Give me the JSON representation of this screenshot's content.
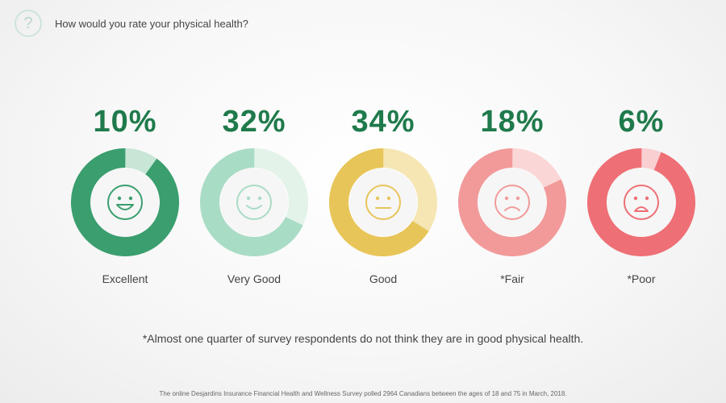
{
  "header": {
    "icon": "question-icon",
    "icon_glyph": "?",
    "question": "How would you rate your physical health?"
  },
  "chart_data": {
    "type": "donut",
    "title": "How would you rate your physical health?",
    "categories": [
      "Excellent",
      "Very Good",
      "Good",
      "*Fair",
      "*Poor"
    ],
    "values": [
      10,
      32,
      34,
      18,
      6
    ],
    "value_labels": [
      "10%",
      "32%",
      "34%",
      "18%",
      "6%"
    ],
    "faces": [
      "big-smile-face-icon",
      "smile-face-icon",
      "neutral-face-icon",
      "frown-face-icon",
      "sad-face-icon"
    ],
    "colors": [
      {
        "main": "#3a9e6e",
        "light": "#c7e6d6"
      },
      {
        "main": "#a9dcc5",
        "light": "#e3f3ea"
      },
      {
        "main": "#e8c559",
        "light": "#f5e6b4"
      },
      {
        "main": "#f29a9a",
        "light": "#fbd6d6"
      },
      {
        "main": "#ee6f75",
        "light": "#f9cfd1"
      }
    ]
  },
  "footnote": "*Almost one quarter of survey respondents do not think they are in good physical health.",
  "source": "The online Desjardins Insurance Financial Health and Wellness Survey polled 2964 Canadians between the ages of 18 and 75 in March, 2018."
}
